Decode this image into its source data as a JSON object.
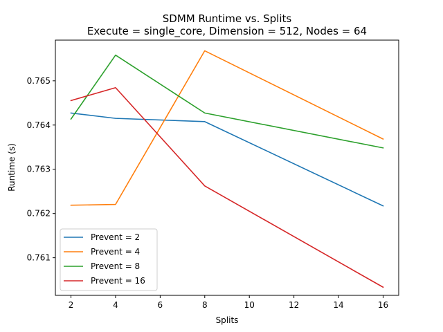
{
  "chart_data": {
    "type": "line",
    "title": "SDMM Runtime vs. Splits",
    "subtitle": "Execute = single_core, Dimension = 512, Nodes = 64",
    "xlabel": "Splits",
    "ylabel": "Runtime (s)",
    "x": [
      2,
      4,
      8,
      16
    ],
    "xlim": [
      1.3,
      16.7
    ],
    "ylim": [
      0.76015,
      0.76592
    ],
    "xticks": [
      2,
      4,
      6,
      8,
      10,
      12,
      14,
      16
    ],
    "yticks": [
      "0.761",
      "0.762",
      "0.763",
      "0.764",
      "0.765"
    ],
    "grid": false,
    "legend_position": "lower-left",
    "series": [
      {
        "name": "Prevent = 2",
        "color": "#1f77b4",
        "values": [
          0.764272,
          0.764151,
          0.764077,
          0.762172
        ]
      },
      {
        "name": "Prevent = 4",
        "color": "#ff7f0e",
        "values": [
          0.762187,
          0.762206,
          0.765679,
          0.763684
        ]
      },
      {
        "name": "Prevent = 8",
        "color": "#2ca02c",
        "values": [
          0.764136,
          0.765581,
          0.764272,
          0.763483
        ]
      },
      {
        "name": "Prevent = 16",
        "color": "#d62728",
        "values": [
          0.764554,
          0.764845,
          0.762624,
          0.760334
        ]
      }
    ]
  }
}
